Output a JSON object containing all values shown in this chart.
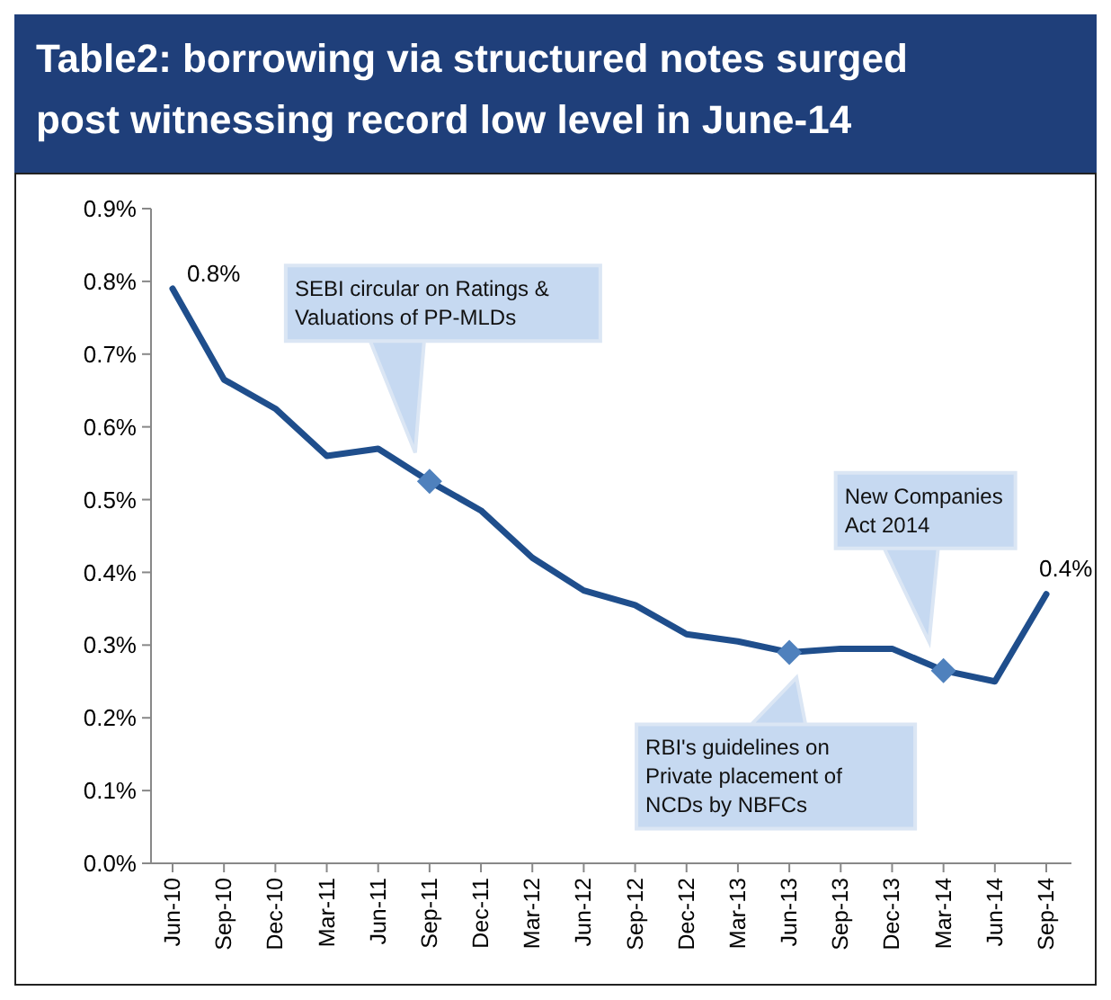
{
  "chart_data": {
    "type": "line",
    "title": "Table2: borrowing via structured notes surged post witnessing record low level in June-14",
    "categories": [
      "Jun-10",
      "Sep-10",
      "Dec-10",
      "Mar-11",
      "Jun-11",
      "Sep-11",
      "Dec-11",
      "Mar-12",
      "Jun-12",
      "Sep-12",
      "Dec-12",
      "Mar-13",
      "Jun-13",
      "Sep-13",
      "Dec-13",
      "Mar-14",
      "Jun-14",
      "Sep-14"
    ],
    "series": [
      {
        "color": "#1f4e8c",
        "values": [
          0.79,
          0.665,
          0.625,
          0.56,
          0.57,
          0.525,
          0.485,
          0.42,
          0.375,
          0.355,
          0.315,
          0.305,
          0.29,
          0.295,
          0.295,
          0.265,
          0.25,
          0.37
        ],
        "value_labels": [
          "0.8%",
          null,
          null,
          null,
          null,
          null,
          null,
          null,
          null,
          null,
          null,
          null,
          null,
          null,
          null,
          null,
          null,
          "0.4%"
        ]
      },
      {
        "type": "scatter",
        "color": "#4f81bd",
        "marker": "diamond",
        "x": [
          "Sep-11",
          "Jun-13",
          "Mar-14"
        ],
        "values": [
          0.525,
          0.29,
          0.265
        ]
      }
    ],
    "ylim": [
      0,
      0.9
    ],
    "yticks": [
      {
        "value": 0,
        "label": "0.0%"
      },
      {
        "value": 0.1,
        "label": "0.1%"
      },
      {
        "value": 0.2,
        "label": "0.2%"
      },
      {
        "value": 0.3,
        "label": "0.3%"
      },
      {
        "value": 0.4,
        "label": "0.4%"
      },
      {
        "value": 0.5,
        "label": "0.5%"
      },
      {
        "value": 0.6,
        "label": "0.6%"
      },
      {
        "value": 0.7,
        "label": "0.7%"
      },
      {
        "value": 0.8,
        "label": "0.8%"
      },
      {
        "value": 0.9,
        "label": "0.9%"
      }
    ],
    "grid": false,
    "annotations": [
      "SEBI circular on Ratings & Valuations of PP-MLDs",
      "RBI's guidelines on Private placement of NCDs by NBFCs",
      "New Companies Act 2014"
    ]
  }
}
